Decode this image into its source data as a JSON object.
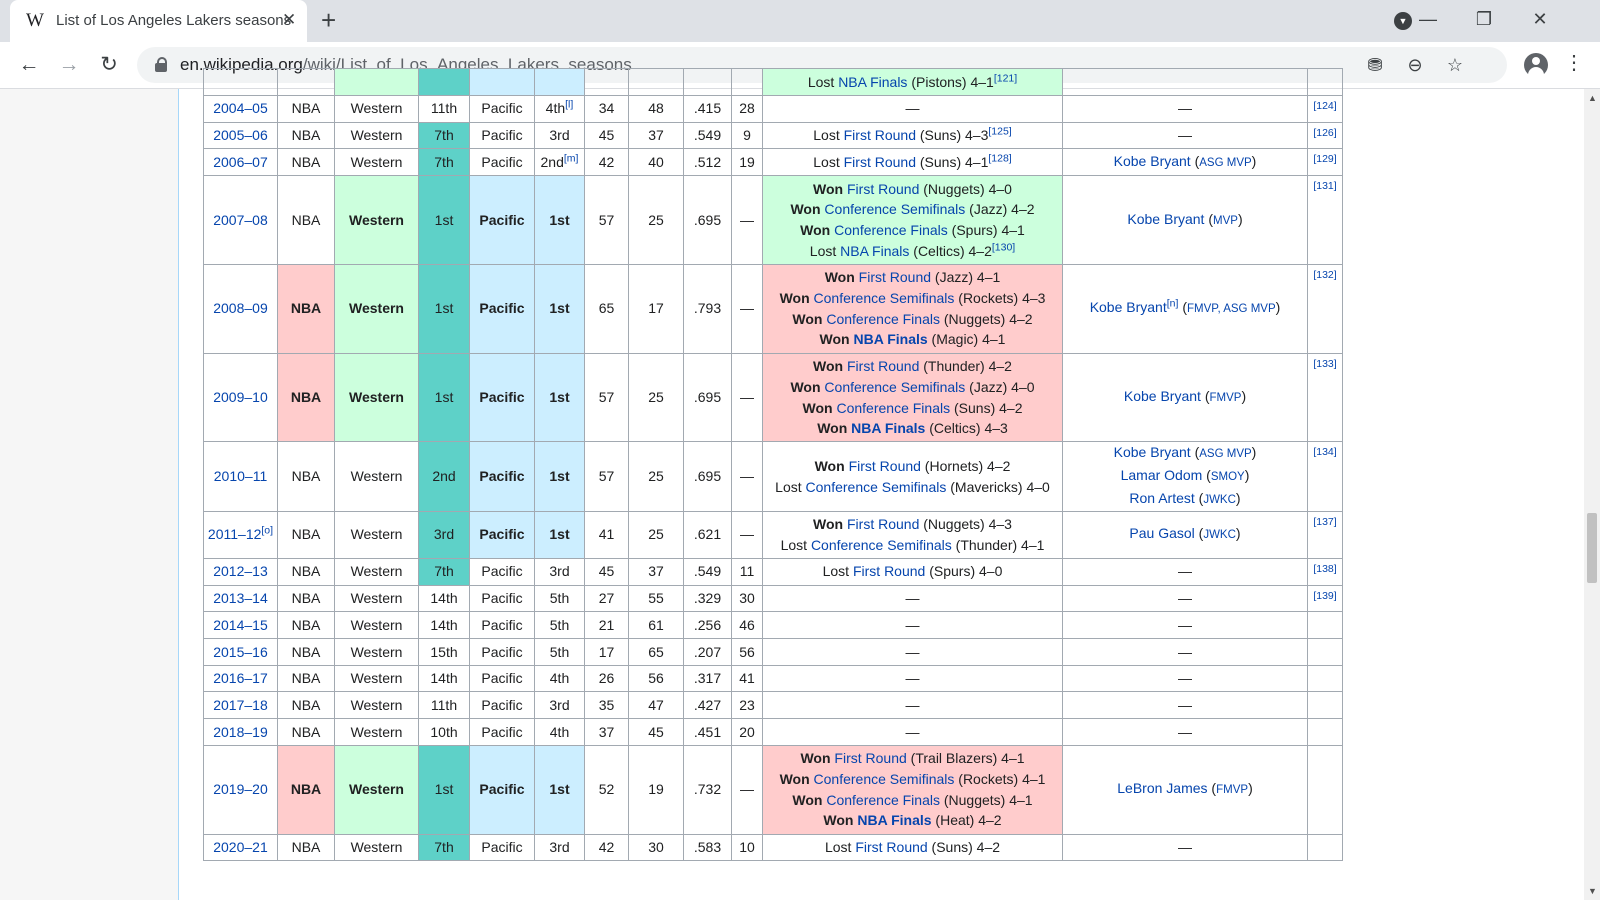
{
  "browser": {
    "tab_title": "List of Los Angeles Lakers seasons",
    "tab_favicon": "W",
    "url_domain": "en.wikipedia.org",
    "url_path": "/wiki/List_of_Los_Angeles_Lakers_seasons",
    "icons": [
      "back-icon",
      "forward-icon",
      "reload-icon",
      "lock-icon",
      "blocked-ad-icon",
      "zoom-out-icon",
      "star-icon",
      "profile-icon",
      "menu-icon",
      "tab-search-icon",
      "minimize-icon",
      "restore-icon",
      "close-window-icon"
    ]
  },
  "colors": {
    "nba_champion": "#ffcccc",
    "conference_champion": "#ccffdd",
    "conference_rank": "#5ed1c8",
    "division_champion": "#cceeff",
    "link": "#0645ad"
  },
  "top_row": {
    "playoffs_fragment": [
      {
        "pre": "Lost ",
        "link": "NBA Finals",
        "post": " (Pistons) 4–1",
        "ref": "[121]"
      }
    ]
  },
  "rows": [
    {
      "season": "2004–05",
      "season_note": "",
      "league": "NBA",
      "conference": "Western",
      "conf_finish": "11th",
      "division": "Pacific",
      "div_finish": "4th",
      "div_note": "[l]",
      "wins": "34",
      "losses": "48",
      "pct": ".415",
      "gb": "28",
      "playoffs": [
        {
          "pre": "—",
          "link": "",
          "post": "",
          "ref": ""
        }
      ],
      "awards": [
        {
          "name": "—",
          "award": ""
        }
      ],
      "ref": "[124]"
    },
    {
      "season": "2005–06",
      "season_note": "",
      "league": "NBA",
      "conference": "Western",
      "conf_finish": "7th",
      "division": "Pacific",
      "div_finish": "3rd",
      "div_note": "",
      "wins": "45",
      "losses": "37",
      "pct": ".549",
      "gb": "9",
      "playoffs": [
        {
          "pre": "Lost ",
          "link": "First Round",
          "post": " (Suns) 4–3",
          "ref": "[125]"
        }
      ],
      "awards": [
        {
          "name": "—",
          "award": ""
        }
      ],
      "ref": "[126]"
    },
    {
      "season": "2006–07",
      "season_note": "",
      "league": "NBA",
      "conference": "Western",
      "conf_finish": "7th",
      "division": "Pacific",
      "div_finish": "2nd",
      "div_note": "[m]",
      "wins": "42",
      "losses": "40",
      "pct": ".512",
      "gb": "19",
      "playoffs": [
        {
          "pre": "Lost ",
          "link": "First Round",
          "post": " (Suns) 4–1",
          "ref": "[128]"
        }
      ],
      "awards": [
        {
          "name": "Kobe Bryant",
          "award": "ASG MVP"
        }
      ],
      "ref": "[129]"
    },
    {
      "season": "2007–08",
      "season_note": "",
      "league": "NBA",
      "conference": "Western",
      "conf_finish": "1st",
      "division": "Pacific",
      "div_finish": "1st",
      "div_note": "",
      "wins": "57",
      "losses": "25",
      "pct": ".695",
      "gb": "—",
      "playoffs": [
        {
          "pre": "Won ",
          "link": "First Round",
          "post": " (Nuggets) 4–0",
          "ref": ""
        },
        {
          "pre": "Won ",
          "link": "Conference Semifinals",
          "post": " (Jazz) 4–2",
          "ref": ""
        },
        {
          "pre": "Won ",
          "link": "Conference Finals",
          "post": " (Spurs) 4–1",
          "ref": ""
        },
        {
          "pre": "Lost ",
          "link": "NBA Finals",
          "post": " (Celtics) 4–2",
          "ref": "[130]"
        }
      ],
      "awards": [
        {
          "name": "Kobe Bryant",
          "award": "MVP"
        }
      ],
      "ref": "[131]"
    },
    {
      "season": "2008–09",
      "season_note": "",
      "league": "NBA",
      "conference": "Western",
      "conf_finish": "1st",
      "division": "Pacific",
      "div_finish": "1st",
      "div_note": "",
      "wins": "65",
      "losses": "17",
      "pct": ".793",
      "gb": "—",
      "playoffs": [
        {
          "pre": "Won ",
          "link": "First Round",
          "post": " (Jazz) 4–1",
          "ref": ""
        },
        {
          "pre": "Won ",
          "link": "Conference Semifinals",
          "post": " (Rockets) 4–3",
          "ref": ""
        },
        {
          "pre": "Won ",
          "link": "Conference Finals",
          "post": " (Nuggets) 4–2",
          "ref": ""
        },
        {
          "pre": "Won ",
          "link": "NBA Finals",
          "post": " (Magic) 4–1",
          "ref": ""
        }
      ],
      "awards": [
        {
          "name": "Kobe Bryant",
          "note": "[n]",
          "award": "FMVP, ASG MVP"
        }
      ],
      "ref": "[132]"
    },
    {
      "season": "2009–10",
      "season_note": "",
      "league": "NBA",
      "conference": "Western",
      "conf_finish": "1st",
      "division": "Pacific",
      "div_finish": "1st",
      "div_note": "",
      "wins": "57",
      "losses": "25",
      "pct": ".695",
      "gb": "—",
      "playoffs": [
        {
          "pre": "Won ",
          "link": "First Round",
          "post": " (Thunder) 4–2",
          "ref": ""
        },
        {
          "pre": "Won ",
          "link": "Conference Semifinals",
          "post": " (Jazz) 4–0",
          "ref": ""
        },
        {
          "pre": "Won ",
          "link": "Conference Finals",
          "post": " (Suns) 4–2",
          "ref": ""
        },
        {
          "pre": "Won ",
          "link": "NBA Finals",
          "post": " (Celtics) 4–3",
          "ref": ""
        }
      ],
      "awards": [
        {
          "name": "Kobe Bryant",
          "award": "FMVP"
        }
      ],
      "ref": "[133]"
    },
    {
      "season": "2010–11",
      "season_note": "",
      "league": "NBA",
      "conference": "Western",
      "conf_finish": "2nd",
      "division": "Pacific",
      "div_finish": "1st",
      "div_note": "",
      "wins": "57",
      "losses": "25",
      "pct": ".695",
      "gb": "—",
      "playoffs": [
        {
          "pre": "Won ",
          "link": "First Round",
          "post": " (Hornets) 4–2",
          "ref": ""
        },
        {
          "pre": "Lost ",
          "link": "Conference Semifinals",
          "post": " (Mavericks) 4–0",
          "ref": ""
        }
      ],
      "awards": [
        {
          "name": "Kobe Bryant",
          "award": "ASG MVP"
        },
        {
          "name": "Lamar Odom",
          "award": "SMOY"
        },
        {
          "name": "Ron Artest",
          "award": "JWKC"
        }
      ],
      "ref": "[134]"
    },
    {
      "season": "2011–12",
      "season_note": "[o]",
      "league": "NBA",
      "conference": "Western",
      "conf_finish": "3rd",
      "division": "Pacific",
      "div_finish": "1st",
      "div_note": "",
      "wins": "41",
      "losses": "25",
      "pct": ".621",
      "gb": "—",
      "playoffs": [
        {
          "pre": "Won ",
          "link": "First Round",
          "post": " (Nuggets) 4–3",
          "ref": ""
        },
        {
          "pre": "Lost ",
          "link": "Conference Semifinals",
          "post": " (Thunder) 4–1",
          "ref": ""
        }
      ],
      "awards": [
        {
          "name": "Pau Gasol",
          "award": "JWKC"
        }
      ],
      "ref": "[137]"
    },
    {
      "season": "2012–13",
      "season_note": "",
      "league": "NBA",
      "conference": "Western",
      "conf_finish": "7th",
      "division": "Pacific",
      "div_finish": "3rd",
      "div_note": "",
      "wins": "45",
      "losses": "37",
      "pct": ".549",
      "gb": "11",
      "playoffs": [
        {
          "pre": "Lost ",
          "link": "First Round",
          "post": " (Spurs) 4–0",
          "ref": ""
        }
      ],
      "awards": [
        {
          "name": "—",
          "award": ""
        }
      ],
      "ref": "[138]"
    },
    {
      "season": "2013–14",
      "season_note": "",
      "league": "NBA",
      "conference": "Western",
      "conf_finish": "14th",
      "division": "Pacific",
      "div_finish": "5th",
      "div_note": "",
      "wins": "27",
      "losses": "55",
      "pct": ".329",
      "gb": "30",
      "playoffs": [
        {
          "pre": "—",
          "link": "",
          "post": "",
          "ref": ""
        }
      ],
      "awards": [
        {
          "name": "—",
          "award": ""
        }
      ],
      "ref": "[139]"
    },
    {
      "season": "2014–15",
      "season_note": "",
      "league": "NBA",
      "conference": "Western",
      "conf_finish": "14th",
      "division": "Pacific",
      "div_finish": "5th",
      "div_note": "",
      "wins": "21",
      "losses": "61",
      "pct": ".256",
      "gb": "46",
      "playoffs": [
        {
          "pre": "—",
          "link": "",
          "post": "",
          "ref": ""
        }
      ],
      "awards": [
        {
          "name": "—",
          "award": ""
        }
      ],
      "ref": ""
    },
    {
      "season": "2015–16",
      "season_note": "",
      "league": "NBA",
      "conference": "Western",
      "conf_finish": "15th",
      "division": "Pacific",
      "div_finish": "5th",
      "div_note": "",
      "wins": "17",
      "losses": "65",
      "pct": ".207",
      "gb": "56",
      "playoffs": [
        {
          "pre": "—",
          "link": "",
          "post": "",
          "ref": ""
        }
      ],
      "awards": [
        {
          "name": "—",
          "award": ""
        }
      ],
      "ref": ""
    },
    {
      "season": "2016–17",
      "season_note": "",
      "league": "NBA",
      "conference": "Western",
      "conf_finish": "14th",
      "division": "Pacific",
      "div_finish": "4th",
      "div_note": "",
      "wins": "26",
      "losses": "56",
      "pct": ".317",
      "gb": "41",
      "playoffs": [
        {
          "pre": "—",
          "link": "",
          "post": "",
          "ref": ""
        }
      ],
      "awards": [
        {
          "name": "—",
          "award": ""
        }
      ],
      "ref": ""
    },
    {
      "season": "2017–18",
      "season_note": "",
      "league": "NBA",
      "conference": "Western",
      "conf_finish": "11th",
      "division": "Pacific",
      "div_finish": "3rd",
      "div_note": "",
      "wins": "35",
      "losses": "47",
      "pct": ".427",
      "gb": "23",
      "playoffs": [
        {
          "pre": "—",
          "link": "",
          "post": "",
          "ref": ""
        }
      ],
      "awards": [
        {
          "name": "—",
          "award": ""
        }
      ],
      "ref": ""
    },
    {
      "season": "2018–19",
      "season_note": "",
      "league": "NBA",
      "conference": "Western",
      "conf_finish": "10th",
      "division": "Pacific",
      "div_finish": "4th",
      "div_note": "",
      "wins": "37",
      "losses": "45",
      "pct": ".451",
      "gb": "20",
      "playoffs": [
        {
          "pre": "—",
          "link": "",
          "post": "",
          "ref": ""
        }
      ],
      "awards": [
        {
          "name": "—",
          "award": ""
        }
      ],
      "ref": ""
    },
    {
      "season": "2019–20",
      "season_note": "",
      "league": "NBA",
      "conference": "Western",
      "conf_finish": "1st",
      "division": "Pacific",
      "div_finish": "1st",
      "div_note": "",
      "wins": "52",
      "losses": "19",
      "pct": ".732",
      "gb": "—",
      "playoffs": [
        {
          "pre": "Won ",
          "link": "First Round",
          "post": " (Trail Blazers) 4–1",
          "ref": ""
        },
        {
          "pre": "Won ",
          "link": "Conference Semifinals",
          "post": " (Rockets) 4–1",
          "ref": ""
        },
        {
          "pre": "Won ",
          "link": "Conference Finals",
          "post": " (Nuggets) 4–1",
          "ref": ""
        },
        {
          "pre": "Won ",
          "link": "NBA Finals",
          "post": " (Heat) 4–2",
          "ref": ""
        }
      ],
      "awards": [
        {
          "name": "LeBron James",
          "award": "FMVP"
        }
      ],
      "ref": ""
    },
    {
      "season": "2020–21",
      "season_note": "",
      "league": "NBA",
      "conference": "Western",
      "conf_finish": "7th",
      "division": "Pacific",
      "div_finish": "3rd",
      "div_note": "",
      "wins": "42",
      "losses": "30",
      "pct": ".583",
      "gb": "10",
      "playoffs": [
        {
          "pre": "Lost ",
          "link": "First Round",
          "post": " (Suns) 4–2",
          "ref": ""
        }
      ],
      "awards": [
        {
          "name": "—",
          "award": ""
        }
      ],
      "ref": ""
    }
  ]
}
